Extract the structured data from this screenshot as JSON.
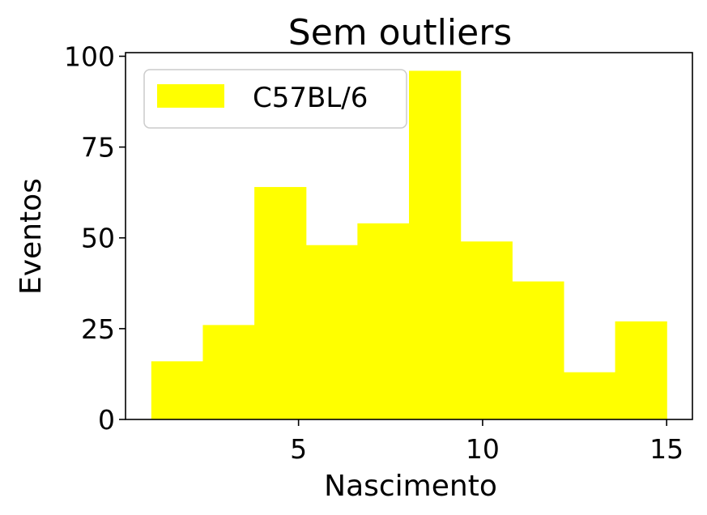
{
  "chart_data": {
    "type": "bar",
    "title": "Sem outliers",
    "xlabel": "Nascimento",
    "ylabel": "Eventos",
    "xlim": [
      0.3,
      15.7
    ],
    "ylim": [
      0,
      101
    ],
    "x_ticks": [
      5,
      10,
      15
    ],
    "y_ticks": [
      0,
      25,
      50,
      75,
      100
    ],
    "grid": false,
    "legend_position": "upper-left",
    "bin_edges": [
      1.0,
      2.4,
      3.8,
      5.2,
      6.6,
      8.0,
      9.4,
      10.8,
      12.2,
      13.6,
      15.0
    ],
    "series": [
      {
        "name": "C57BL/6",
        "color": "#ffff00",
        "values": [
          16,
          26,
          64,
          48,
          54,
          96,
          49,
          38,
          13,
          27
        ]
      }
    ]
  }
}
